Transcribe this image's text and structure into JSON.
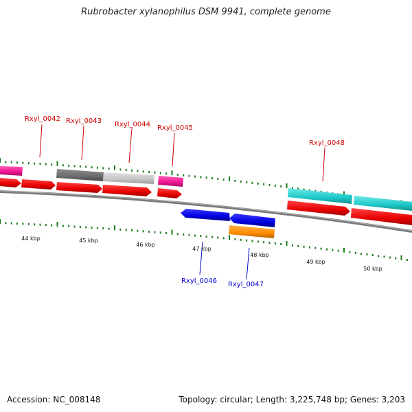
{
  "title": "Rubrobacter xylanophilus DSM 9941, complete genome",
  "footer": {
    "accession": "Accession: NC_008148",
    "summary": "Topology: circular; Length: 3,225,748 bp; Genes: 3,203"
  },
  "genes": [
    {
      "label": "Rxyl_0042",
      "strand": "plus"
    },
    {
      "label": "Rxyl_0043",
      "strand": "plus"
    },
    {
      "label": "Rxyl_0044",
      "strand": "plus"
    },
    {
      "label": "Rxyl_0045",
      "strand": "plus"
    },
    {
      "label": "Rxyl_0046",
      "strand": "minus"
    },
    {
      "label": "Rxyl_0047",
      "strand": "minus"
    },
    {
      "label": "Rxyl_0048",
      "strand": "plus"
    }
  ],
  "scale": [
    "44 kbp",
    "45 kbp",
    "46 kbp",
    "47 kbp",
    "48 kbp",
    "49 kbp",
    "50 kbp"
  ],
  "colors": {
    "plus_label": "#cc0000",
    "minus_label": "#0000cc",
    "cds_red": "#ee0000",
    "cds_blue": "#0000ee",
    "pink": "#ee1493",
    "dark_gray": "#6b6b6b",
    "light_gray": "#c4c4c4",
    "cyan": "#1ec8c8",
    "orange": "#ff8c00",
    "backbone": "#8a8a8a",
    "tick": "#1a7a1a"
  }
}
